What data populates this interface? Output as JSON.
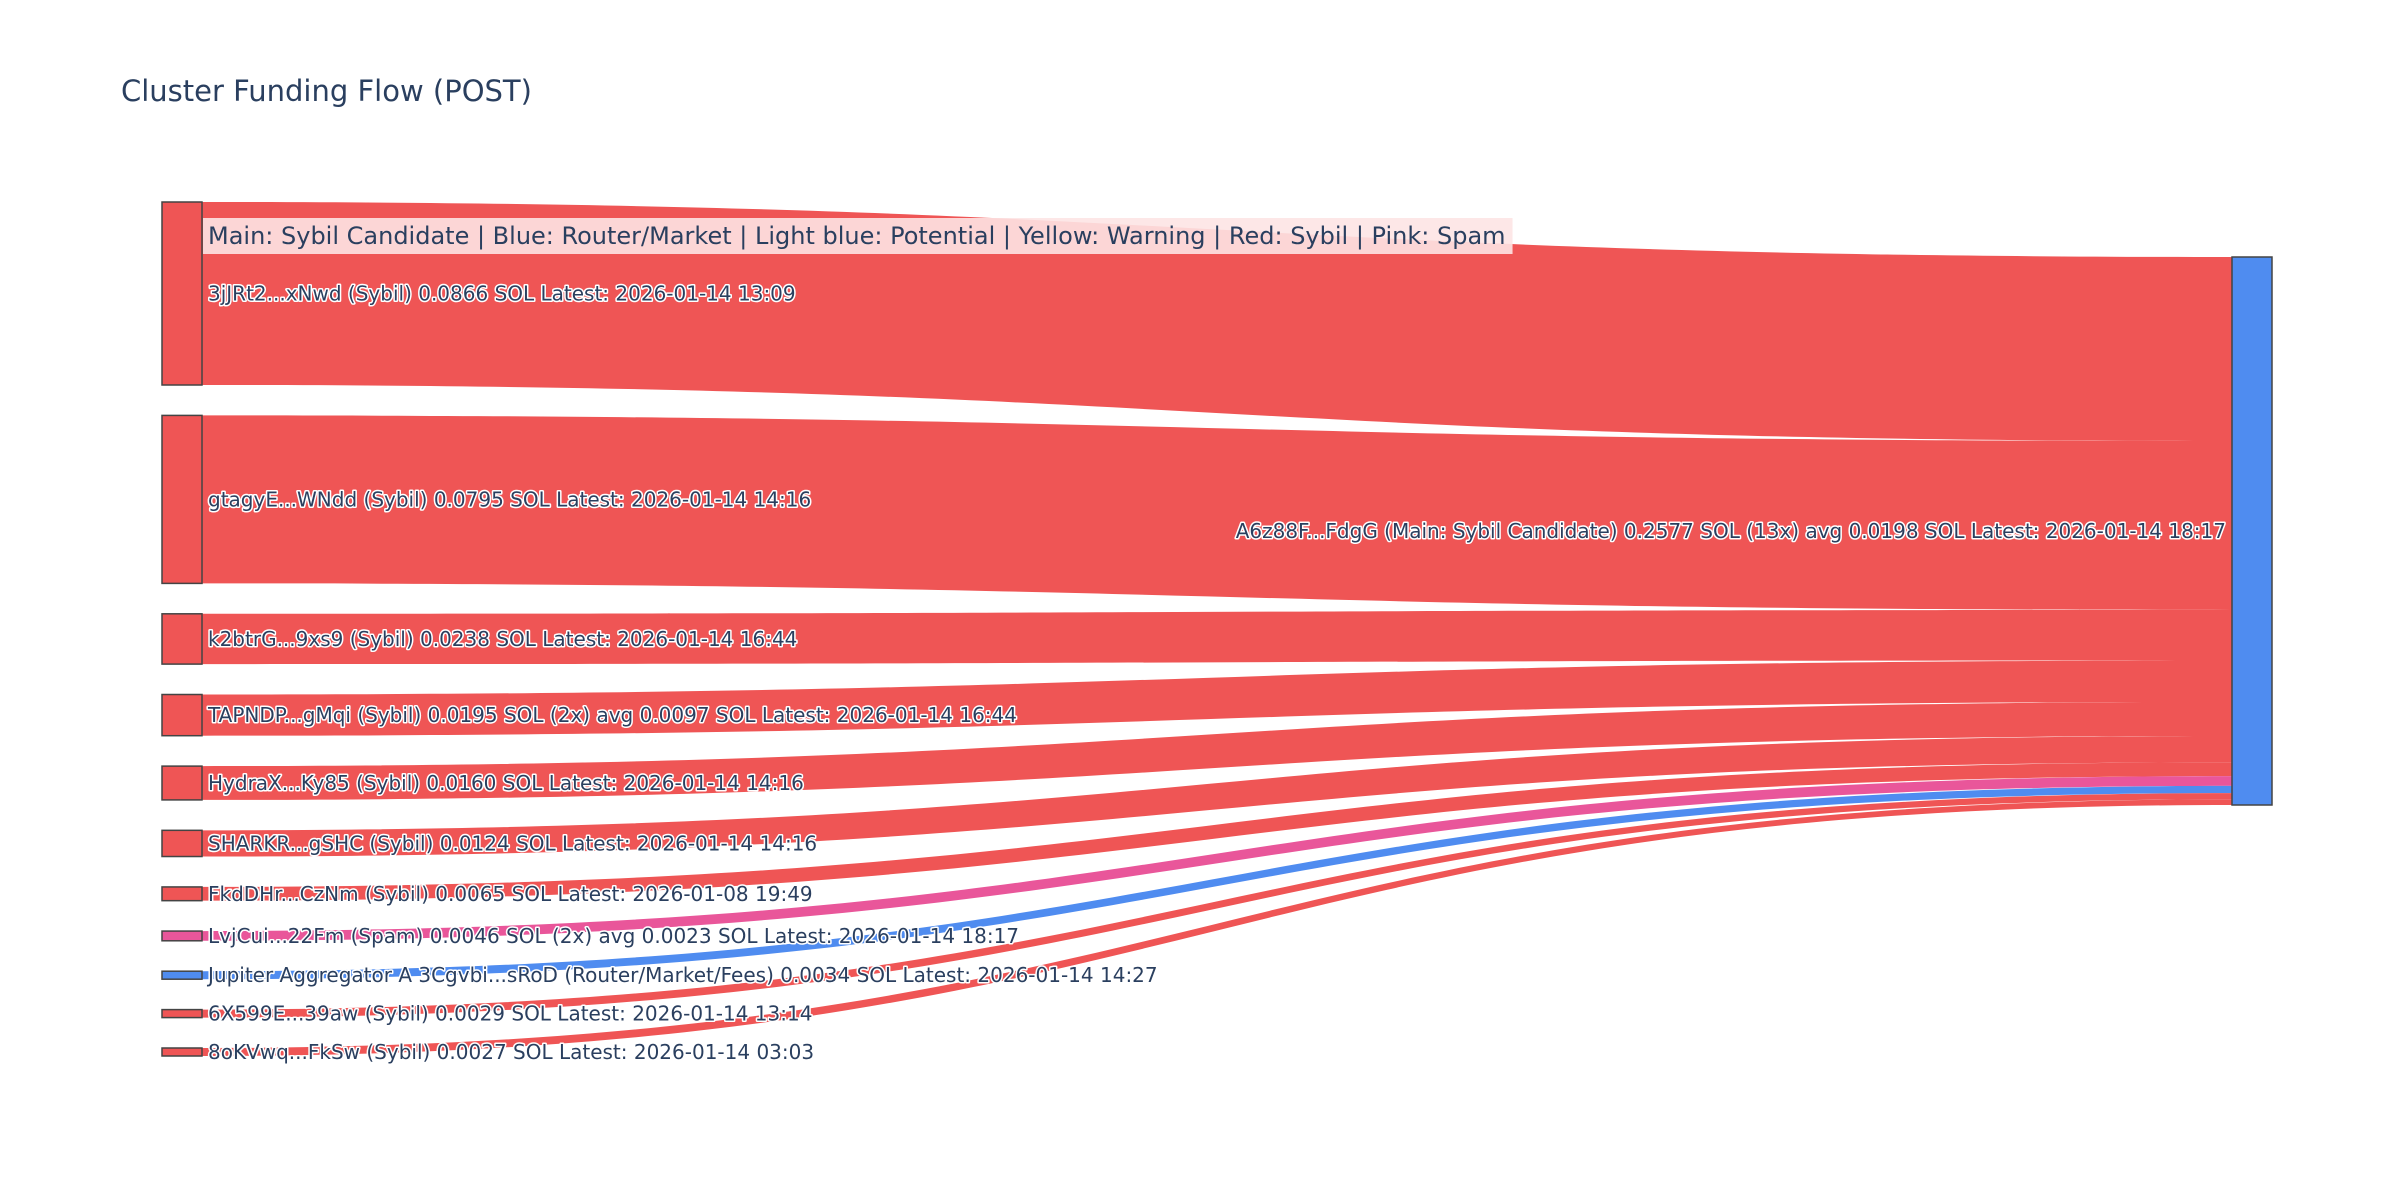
{
  "chart_data": {
    "type": "sankey",
    "title": "Cluster Funding Flow (POST)",
    "legend_text": "Main: Sybil Candidate  |  Blue: Router/Market | Light blue: Potential | Yellow: Warning | Red: Sybil | Pink: Spam",
    "colors": {
      "sybil": "#EF5555",
      "spam": "#E9569A",
      "router": "#4F8CF0",
      "main": "#4F8CF0",
      "legend_bg": "#FDE4E4"
    },
    "target": {
      "id": "main",
      "label": "A6z88F...FdgG (Main: Sybil Candidate) 0.2577 SOL (13x) avg 0.0198 SOL Latest: 2026-01-14 18:17",
      "value": 0.2577,
      "category": "main"
    },
    "sources": [
      {
        "id": "s1",
        "label": "3jJRt2...xNwd (Sybil) 0.0866 SOL Latest: 2026-01-14 13:09",
        "value": 0.0866,
        "category": "sybil"
      },
      {
        "id": "s2",
        "label": "gtagyE...WNdd (Sybil) 0.0795 SOL Latest: 2026-01-14 14:16",
        "value": 0.0795,
        "category": "sybil"
      },
      {
        "id": "s3",
        "label": "k2btrG...9xs9 (Sybil) 0.0238 SOL Latest: 2026-01-14 16:44",
        "value": 0.0238,
        "category": "sybil"
      },
      {
        "id": "s4",
        "label": "TAPNDP...gMqi (Sybil) 0.0195 SOL (2x) avg 0.0097 SOL Latest: 2026-01-14 16:44",
        "value": 0.0195,
        "category": "sybil"
      },
      {
        "id": "s5",
        "label": "HydraX...Ky85 (Sybil) 0.0160 SOL Latest: 2026-01-14 14:16",
        "value": 0.016,
        "category": "sybil"
      },
      {
        "id": "s6",
        "label": "SHARKR...gSHC (Sybil) 0.0124 SOL Latest: 2026-01-14 14:16",
        "value": 0.0124,
        "category": "sybil"
      },
      {
        "id": "s7",
        "label": "FkdDHr...CzNm (Sybil) 0.0065 SOL Latest: 2026-01-08 19:49",
        "value": 0.0065,
        "category": "sybil"
      },
      {
        "id": "s8",
        "label": "LvjCui...22Fm (Spam) 0.0046 SOL (2x) avg 0.0023 SOL Latest: 2026-01-14 18:17",
        "value": 0.0046,
        "category": "spam"
      },
      {
        "id": "s9",
        "label": "Jupiter Aggregator A 3Cgvbi...sRoD (Router/Market/Fees) 0.0034 SOL Latest: 2026-01-14 14:27",
        "value": 0.0034,
        "category": "router"
      },
      {
        "id": "s10",
        "label": "6X599E...39aw (Sybil) 0.0029 SOL Latest: 2026-01-14 13:14",
        "value": 0.0029,
        "category": "sybil"
      },
      {
        "id": "s11",
        "label": "8oKVwq...FkSw (Sybil) 0.0027 SOL Latest: 2026-01-14 03:03",
        "value": 0.0027,
        "category": "sybil"
      }
    ]
  }
}
